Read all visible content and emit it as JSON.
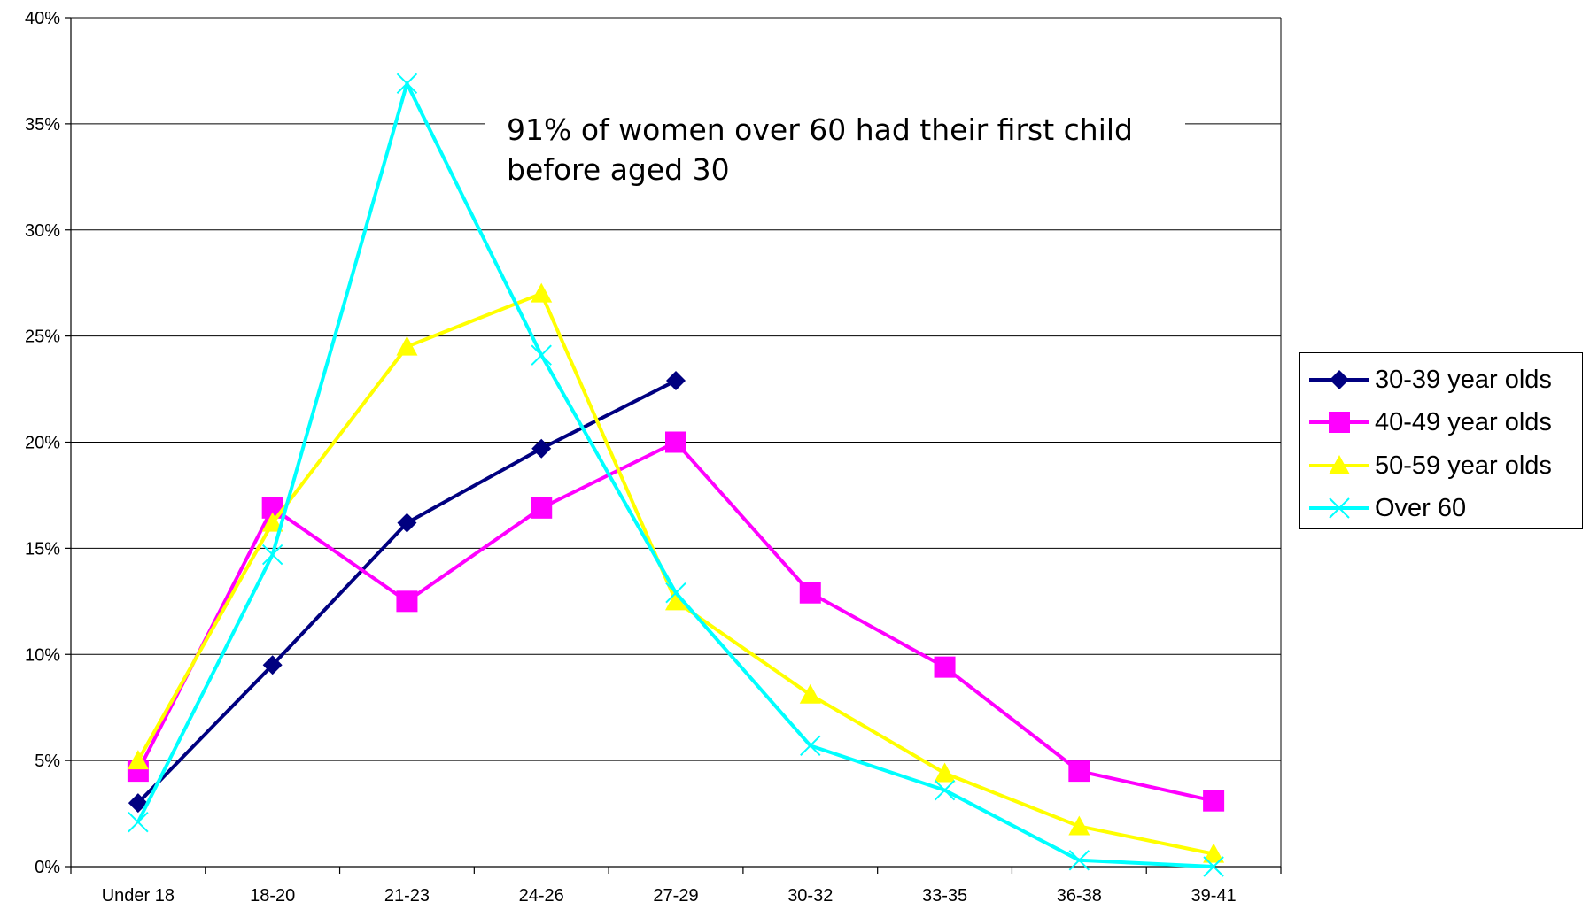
{
  "chart_data": {
    "type": "line",
    "title": "",
    "xlabel": "",
    "ylabel": "",
    "categories": [
      "Under 18",
      "18-20",
      "21-23",
      "24-26",
      "27-29",
      "30-32",
      "33-35",
      "36-38",
      "39-41"
    ],
    "ylim": [
      0,
      0.4
    ],
    "yticks": [
      "0%",
      "5%",
      "10%",
      "15%",
      "20%",
      "25%",
      "30%",
      "35%",
      "40%"
    ],
    "grid": true,
    "legend_position": "right",
    "annotation": [
      "91% of women over 60 had their first child",
      "before aged 30"
    ],
    "series": [
      {
        "name": "30-39 year olds",
        "color": "#000080",
        "marker": "diamond",
        "values": [
          0.03,
          0.095,
          0.162,
          0.197,
          0.229,
          null,
          null,
          null,
          null
        ]
      },
      {
        "name": "40-49 year olds",
        "color": "#ff00ff",
        "marker": "square",
        "values": [
          0.045,
          0.169,
          0.125,
          0.169,
          0.2,
          0.129,
          0.094,
          0.045,
          0.031
        ]
      },
      {
        "name": "50-59 year olds",
        "color": "#ffff00",
        "marker": "triangle",
        "values": [
          0.05,
          0.162,
          0.245,
          0.27,
          0.125,
          0.081,
          0.044,
          0.019,
          0.006
        ]
      },
      {
        "name": "Over 60",
        "color": "#00ffff",
        "marker": "x",
        "values": [
          0.021,
          0.147,
          0.369,
          0.241,
          0.129,
          0.057,
          0.036,
          0.003,
          0.0
        ]
      }
    ]
  }
}
